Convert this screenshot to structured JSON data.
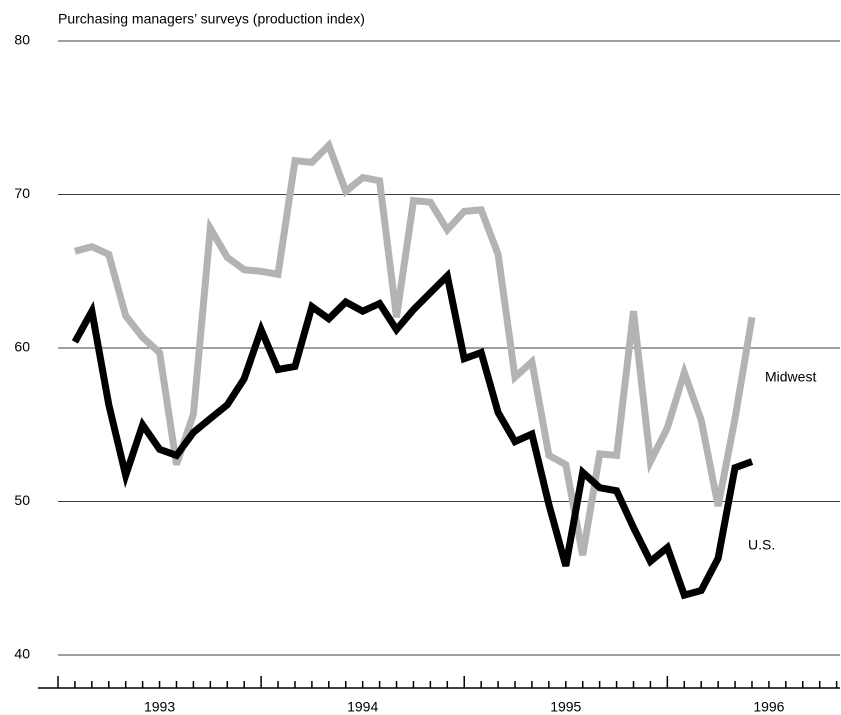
{
  "chart_data": {
    "type": "line",
    "title": "Purchasing managers’ surveys (production index)",
    "x": [
      1993.0833,
      1993.1667,
      1993.25,
      1993.3333,
      1993.4167,
      1993.5,
      1993.5833,
      1993.6667,
      1993.75,
      1993.8333,
      1993.9167,
      1994,
      1994.0833,
      1994.1667,
      1994.25,
      1994.3333,
      1994.4167,
      1994.5,
      1994.5833,
      1994.6667,
      1994.75,
      1994.8333,
      1994.9167,
      1995,
      1995.0833,
      1995.1667,
      1995.25,
      1995.3333,
      1995.4167,
      1995.5,
      1995.5833,
      1995.6667,
      1995.75,
      1995.8333,
      1995.9167,
      1996,
      1996.0833,
      1996.1667,
      1996.25,
      1996.3333,
      1996.4167
    ],
    "series": [
      {
        "name": "Midwest",
        "color": "#b3b3b3",
        "values": [
          66.3,
          66.6,
          66.1,
          62.1,
          60.7,
          59.7,
          52.4,
          55.7,
          67.8,
          65.9,
          65.1,
          65.0,
          64.8,
          72.2,
          72.1,
          73.2,
          70.2,
          71.1,
          70.9,
          62.0,
          69.6,
          69.5,
          67.7,
          68.9,
          69.0,
          66.1,
          58.1,
          59.1,
          53.0,
          52.4,
          46.5,
          53.1,
          53.0,
          62.4,
          52.6,
          54.8,
          58.4,
          55.3,
          49.7,
          55.4,
          62.0
        ]
      },
      {
        "name": "U.S.",
        "color": "#000000",
        "values": [
          60.4,
          62.4,
          56.3,
          51.7,
          55.0,
          53.4,
          53.0,
          54.5,
          55.4,
          56.3,
          58.0,
          61.2,
          58.6,
          58.8,
          62.7,
          61.9,
          63.0,
          62.4,
          62.9,
          61.2,
          62.5,
          63.6,
          64.7,
          59.3,
          59.7,
          55.8,
          53.9,
          54.4,
          49.8,
          45.8,
          51.9,
          50.9,
          50.7,
          48.3,
          46.1,
          47.0,
          43.9,
          44.2,
          46.3,
          52.2,
          52.6
        ]
      }
    ],
    "xlim": [
      1993,
      1996.85
    ],
    "xticks": [
      {
        "value": 1993.5,
        "label": "1993"
      },
      {
        "value": 1994.5,
        "label": "1994"
      },
      {
        "value": 1995.5,
        "label": "1995"
      },
      {
        "value": 1996.5,
        "label": "1996"
      }
    ],
    "ylim": [
      40,
      80
    ],
    "yticks": [
      40,
      50,
      60,
      70,
      80
    ],
    "grid": true
  }
}
